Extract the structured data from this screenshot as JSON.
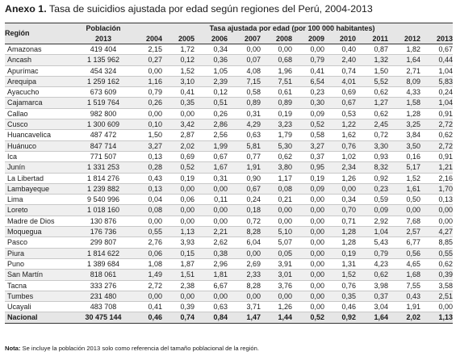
{
  "title": {
    "prefix": "Anexo 1.",
    "text": "Tasa de suicidios ajustada por edad según regiones del Perú, 2004-2013"
  },
  "table": {
    "col_region": "Región",
    "col_pop_line1": "Población",
    "col_pop_line2": "2013",
    "rate_group_label": "Tasa ajustada por edad (por 100 000 habitantes)",
    "years": [
      "2004",
      "2005",
      "2006",
      "2007",
      "2008",
      "2009",
      "2010",
      "2011",
      "2012",
      "2013"
    ],
    "rows": [
      [
        "Amazonas",
        "419 404",
        "2,15",
        "1,72",
        "0,34",
        "0,00",
        "0,00",
        "0,00",
        "0,40",
        "0,87",
        "1,82",
        "0,67"
      ],
      [
        "Ancash",
        "1 135 962",
        "0,27",
        "0,12",
        "0,36",
        "0,07",
        "0,68",
        "0,79",
        "2,40",
        "1,32",
        "1,64",
        "0,44"
      ],
      [
        "Apurímac",
        "454 324",
        "0,00",
        "1,52",
        "1,05",
        "4,08",
        "1,96",
        "0,41",
        "0,74",
        "1,50",
        "2,71",
        "1,04"
      ],
      [
        "Arequipa",
        "1 259 162",
        "1,16",
        "3,10",
        "2,39",
        "7,15",
        "7,51",
        "6,54",
        "4,01",
        "5,52",
        "8,09",
        "5,83"
      ],
      [
        "Ayacucho",
        "673 609",
        "0,79",
        "0,41",
        "0,12",
        "0,58",
        "0,61",
        "0,23",
        "0,69",
        "0,62",
        "4,33",
        "0,24"
      ],
      [
        "Cajamarca",
        "1 519 764",
        "0,26",
        "0,35",
        "0,51",
        "0,89",
        "0,89",
        "0,30",
        "0,67",
        "1,27",
        "1,58",
        "1,04"
      ],
      [
        "Callao",
        "982 800",
        "0,00",
        "0,00",
        "0,26",
        "0,31",
        "0,19",
        "0,09",
        "0,53",
        "0,62",
        "1,28",
        "0,91"
      ],
      [
        "Cusco",
        "1 300 609",
        "0,10",
        "3,42",
        "2,86",
        "4,29",
        "3,23",
        "0,52",
        "1,22",
        "2,45",
        "3,25",
        "2,72"
      ],
      [
        "Huancavelica",
        "487 472",
        "1,50",
        "2,87",
        "2,56",
        "0,63",
        "1,79",
        "0,58",
        "1,62",
        "0,72",
        "3,84",
        "0,62"
      ],
      [
        "Huánuco",
        "847 714",
        "3,27",
        "2,02",
        "1,99",
        "5,81",
        "5,30",
        "3,27",
        "0,76",
        "3,30",
        "3,50",
        "2,72"
      ],
      [
        "Ica",
        "771 507",
        "0,13",
        "0,69",
        "0,67",
        "0,77",
        "0,62",
        "0,37",
        "1,02",
        "0,93",
        "0,16",
        "0,91"
      ],
      [
        "Junín",
        "1 331 253",
        "0,28",
        "0,52",
        "1,67",
        "1,91",
        "3,80",
        "0,95",
        "2,34",
        "8,32",
        "5,17",
        "1,21"
      ],
      [
        "La Libertad",
        "1 814 276",
        "0,43",
        "0,19",
        "0,31",
        "0,90",
        "1,17",
        "0,19",
        "1,26",
        "0,92",
        "1,52",
        "2,16"
      ],
      [
        "Lambayeque",
        "1 239 882",
        "0,13",
        "0,00",
        "0,00",
        "0,67",
        "0,08",
        "0,09",
        "0,00",
        "0,23",
        "1,61",
        "1,70"
      ],
      [
        "Lima",
        "9 540 996",
        "0,04",
        "0,06",
        "0,11",
        "0,24",
        "0,21",
        "0,00",
        "0,34",
        "0,59",
        "0,50",
        "0,13"
      ],
      [
        "Loreto",
        "1 018 160",
        "0,08",
        "0,00",
        "0,00",
        "0,18",
        "0,00",
        "0,00",
        "0,70",
        "0,09",
        "0,00",
        "0,00"
      ],
      [
        "Madre de Dios",
        "130 876",
        "0,00",
        "0,00",
        "0,00",
        "0,72",
        "0,00",
        "0,00",
        "0,71",
        "2,92",
        "7,68",
        "0,00"
      ],
      [
        "Moquegua",
        "176 736",
        "0,55",
        "1,13",
        "2,21",
        "8,28",
        "5,10",
        "0,00",
        "1,28",
        "1,04",
        "2,57",
        "4,27"
      ],
      [
        "Pasco",
        "299 807",
        "2,76",
        "3,93",
        "2,62",
        "6,04",
        "5,07",
        "0,00",
        "1,28",
        "5,43",
        "6,77",
        "8,85"
      ],
      [
        "Piura",
        "1 814 622",
        "0,06",
        "0,15",
        "0,38",
        "0,00",
        "0,05",
        "0,00",
        "0,19",
        "0,79",
        "0,56",
        "0,55"
      ],
      [
        "Puno",
        "1 389 684",
        "1,08",
        "1,87",
        "2,96",
        "2,69",
        "3,91",
        "0,00",
        "1,31",
        "4,23",
        "4,65",
        "0,62"
      ],
      [
        "San Martín",
        "818 061",
        "1,49",
        "1,51",
        "1,81",
        "2,33",
        "3,01",
        "0,00",
        "1,52",
        "0,62",
        "1,68",
        "0,39"
      ],
      [
        "Tacna",
        "333 276",
        "2,72",
        "2,38",
        "6,67",
        "8,28",
        "3,76",
        "0,00",
        "0,76",
        "3,98",
        "7,55",
        "3,58"
      ],
      [
        "Tumbes",
        "231 480",
        "0,00",
        "0,00",
        "0,00",
        "0,00",
        "0,00",
        "0,00",
        "0,35",
        "0,37",
        "0,43",
        "2,51"
      ],
      [
        "Ucayali",
        "483 708",
        "0,41",
        "0,39",
        "0,63",
        "3,71",
        "1,26",
        "0,00",
        "0,46",
        "3,04",
        "1,91",
        "0,00"
      ]
    ],
    "total": [
      "Nacional",
      "30 475 144",
      "0,46",
      "0,74",
      "0,84",
      "1,47",
      "1,44",
      "0,52",
      "0,92",
      "1,64",
      "2,02",
      "1,13"
    ]
  },
  "note": {
    "label": "Nota:",
    "text": "Se incluye la población 2013 solo como referencia del tamaño poblacional de la región."
  }
}
